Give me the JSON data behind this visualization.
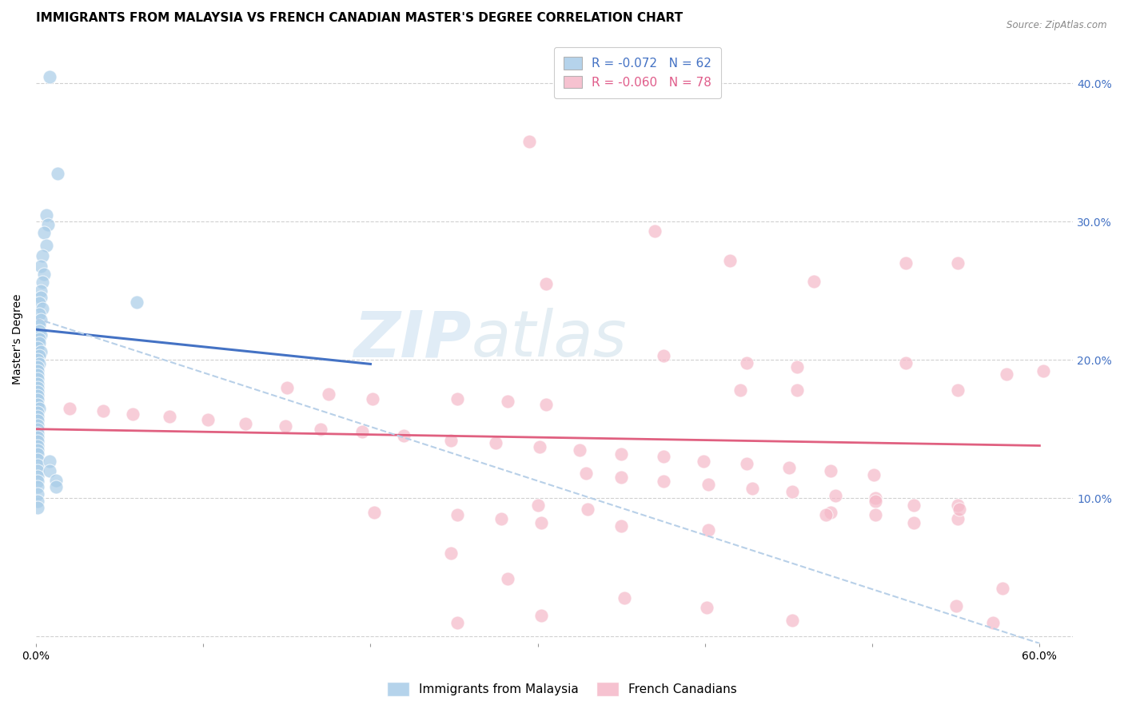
{
  "title": "IMMIGRANTS FROM MALAYSIA VS FRENCH CANADIAN MASTER'S DEGREE CORRELATION CHART",
  "source": "Source: ZipAtlas.com",
  "ylabel": "Master's Degree",
  "watermark": "ZIPatlas",
  "xlim": [
    0.0,
    0.62
  ],
  "ylim": [
    -0.005,
    0.435
  ],
  "yticks": [
    0.0,
    0.1,
    0.2,
    0.3,
    0.4
  ],
  "ytick_labels": [
    "",
    "10.0%",
    "20.0%",
    "30.0%",
    "40.0%"
  ],
  "xticks": [
    0.0,
    0.1,
    0.2,
    0.3,
    0.4,
    0.5,
    0.6
  ],
  "xtick_labels": [
    "0.0%",
    "",
    "",
    "",
    "",
    "",
    "60.0%"
  ],
  "legend_r1": "R = -0.072",
  "legend_n1": "N = 62",
  "legend_r2": "R = -0.060",
  "legend_n2": "N = 78",
  "blue_color": "#a8cce8",
  "pink_color": "#f5b8c8",
  "blue_line_color": "#4472c4",
  "pink_line_color": "#e06080",
  "dashed_line_color": "#b8d0e8",
  "blue_scatter": [
    [
      0.008,
      0.405
    ],
    [
      0.013,
      0.335
    ],
    [
      0.006,
      0.305
    ],
    [
      0.007,
      0.298
    ],
    [
      0.005,
      0.292
    ],
    [
      0.006,
      0.283
    ],
    [
      0.004,
      0.275
    ],
    [
      0.003,
      0.268
    ],
    [
      0.005,
      0.262
    ],
    [
      0.004,
      0.256
    ],
    [
      0.003,
      0.25
    ],
    [
      0.003,
      0.245
    ],
    [
      0.002,
      0.241
    ],
    [
      0.004,
      0.237
    ],
    [
      0.002,
      0.233
    ],
    [
      0.003,
      0.229
    ],
    [
      0.002,
      0.225
    ],
    [
      0.002,
      0.221
    ],
    [
      0.003,
      0.218
    ],
    [
      0.002,
      0.215
    ],
    [
      0.002,
      0.212
    ],
    [
      0.001,
      0.209
    ],
    [
      0.003,
      0.206
    ],
    [
      0.002,
      0.203
    ],
    [
      0.001,
      0.2
    ],
    [
      0.002,
      0.197
    ],
    [
      0.001,
      0.195
    ],
    [
      0.001,
      0.192
    ],
    [
      0.001,
      0.189
    ],
    [
      0.001,
      0.186
    ],
    [
      0.001,
      0.183
    ],
    [
      0.001,
      0.18
    ],
    [
      0.001,
      0.177
    ],
    [
      0.001,
      0.174
    ],
    [
      0.001,
      0.171
    ],
    [
      0.001,
      0.168
    ],
    [
      0.002,
      0.165
    ],
    [
      0.001,
      0.162
    ],
    [
      0.001,
      0.159
    ],
    [
      0.001,
      0.156
    ],
    [
      0.001,
      0.153
    ],
    [
      0.001,
      0.15
    ],
    [
      0.001,
      0.147
    ],
    [
      0.001,
      0.144
    ],
    [
      0.001,
      0.141
    ],
    [
      0.001,
      0.138
    ],
    [
      0.001,
      0.135
    ],
    [
      0.001,
      0.132
    ],
    [
      0.001,
      0.128
    ],
    [
      0.001,
      0.124
    ],
    [
      0.001,
      0.12
    ],
    [
      0.001,
      0.116
    ],
    [
      0.001,
      0.112
    ],
    [
      0.06,
      0.242
    ],
    [
      0.001,
      0.108
    ],
    [
      0.001,
      0.103
    ],
    [
      0.001,
      0.098
    ],
    [
      0.001,
      0.093
    ],
    [
      0.008,
      0.127
    ],
    [
      0.008,
      0.12
    ],
    [
      0.012,
      0.113
    ],
    [
      0.012,
      0.108
    ]
  ],
  "pink_scatter": [
    [
      0.295,
      0.358
    ],
    [
      0.37,
      0.293
    ],
    [
      0.415,
      0.272
    ],
    [
      0.305,
      0.255
    ],
    [
      0.465,
      0.257
    ],
    [
      0.52,
      0.27
    ],
    [
      0.551,
      0.27
    ],
    [
      0.375,
      0.203
    ],
    [
      0.425,
      0.198
    ],
    [
      0.455,
      0.195
    ],
    [
      0.52,
      0.198
    ],
    [
      0.15,
      0.18
    ],
    [
      0.175,
      0.175
    ],
    [
      0.201,
      0.172
    ],
    [
      0.252,
      0.172
    ],
    [
      0.282,
      0.17
    ],
    [
      0.305,
      0.168
    ],
    [
      0.02,
      0.165
    ],
    [
      0.04,
      0.163
    ],
    [
      0.058,
      0.161
    ],
    [
      0.08,
      0.159
    ],
    [
      0.103,
      0.157
    ],
    [
      0.125,
      0.154
    ],
    [
      0.149,
      0.152
    ],
    [
      0.17,
      0.15
    ],
    [
      0.195,
      0.148
    ],
    [
      0.22,
      0.145
    ],
    [
      0.248,
      0.142
    ],
    [
      0.275,
      0.14
    ],
    [
      0.301,
      0.137
    ],
    [
      0.325,
      0.135
    ],
    [
      0.35,
      0.132
    ],
    [
      0.375,
      0.13
    ],
    [
      0.399,
      0.127
    ],
    [
      0.425,
      0.125
    ],
    [
      0.45,
      0.122
    ],
    [
      0.475,
      0.12
    ],
    [
      0.501,
      0.117
    ],
    [
      0.329,
      0.118
    ],
    [
      0.35,
      0.115
    ],
    [
      0.375,
      0.112
    ],
    [
      0.402,
      0.11
    ],
    [
      0.428,
      0.107
    ],
    [
      0.452,
      0.105
    ],
    [
      0.478,
      0.102
    ],
    [
      0.502,
      0.1
    ],
    [
      0.502,
      0.098
    ],
    [
      0.525,
      0.095
    ],
    [
      0.3,
      0.095
    ],
    [
      0.33,
      0.092
    ],
    [
      0.202,
      0.09
    ],
    [
      0.252,
      0.088
    ],
    [
      0.278,
      0.085
    ],
    [
      0.302,
      0.082
    ],
    [
      0.35,
      0.08
    ],
    [
      0.402,
      0.077
    ],
    [
      0.248,
      0.06
    ],
    [
      0.282,
      0.042
    ],
    [
      0.352,
      0.028
    ],
    [
      0.401,
      0.021
    ],
    [
      0.302,
      0.015
    ],
    [
      0.452,
      0.012
    ],
    [
      0.55,
      0.022
    ],
    [
      0.252,
      0.01
    ],
    [
      0.475,
      0.09
    ],
    [
      0.502,
      0.088
    ],
    [
      0.551,
      0.085
    ],
    [
      0.525,
      0.082
    ],
    [
      0.578,
      0.035
    ],
    [
      0.572,
      0.01
    ],
    [
      0.551,
      0.178
    ],
    [
      0.551,
      0.095
    ],
    [
      0.472,
      0.088
    ],
    [
      0.58,
      0.19
    ],
    [
      0.455,
      0.178
    ],
    [
      0.421,
      0.178
    ],
    [
      0.602,
      0.192
    ],
    [
      0.552,
      0.092
    ]
  ],
  "blue_trend_x": [
    0.0,
    0.2
  ],
  "blue_trend_y": [
    0.222,
    0.197
  ],
  "pink_trend_x": [
    0.0,
    0.6
  ],
  "pink_trend_y": [
    0.15,
    0.138
  ],
  "dashed_trend_x": [
    0.0,
    0.6
  ],
  "dashed_trend_y": [
    0.23,
    -0.005
  ],
  "background_color": "#ffffff",
  "grid_color": "#d0d0d0",
  "title_fontsize": 11,
  "axis_label_fontsize": 10,
  "tick_fontsize": 10,
  "legend_fontsize": 11
}
